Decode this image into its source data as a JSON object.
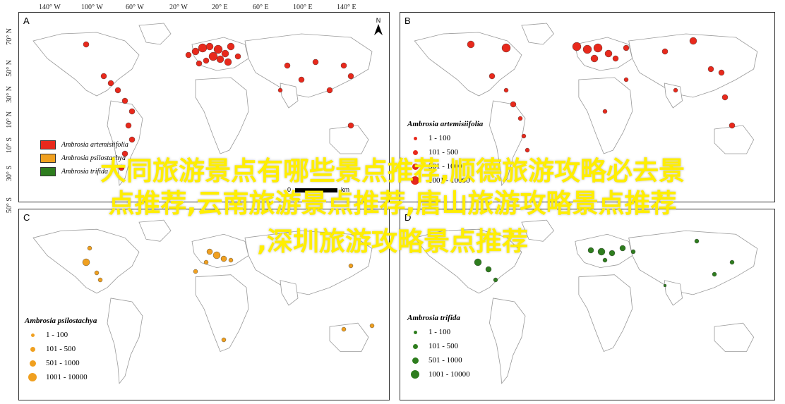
{
  "top_axis": [
    "140° W",
    "100° W",
    "60° W",
    "20° W",
    "20° E",
    "60° E",
    "100° E",
    "140° E",
    "N"
  ],
  "lat_axis": [
    "70° N",
    "50° N",
    "30° N",
    "10° N",
    "10° S",
    "30° S",
    "50° S"
  ],
  "panels": {
    "A": {
      "letter": "A"
    },
    "B": {
      "letter": "B",
      "legend_title": "Ambrosia artemisiifolia",
      "legend": [
        "1 - 100",
        "101 - 500",
        "501 - 1000",
        "1001 - 10000"
      ],
      "color": "#e8291c"
    },
    "C": {
      "letter": "C",
      "legend_title": "Ambrosia psilostachya",
      "legend": [
        "1 - 100",
        "101 - 500",
        "501 - 1000",
        "1001 - 10000"
      ],
      "color": "#f0a020"
    },
    "D": {
      "letter": "D",
      "legend_title": "Ambrosia trifida",
      "legend": [
        "1 - 100",
        "101 - 500",
        "501 - 1000",
        "1001 - 10000"
      ],
      "color": "#2e7d1e"
    }
  },
  "species_legend": [
    "Ambrosia artemisiifolia",
    "Ambrosia psilostachya",
    "Ambrosia trifida"
  ],
  "species_colors": [
    "#e8291c",
    "#f0a020",
    "#2e7d1e"
  ],
  "scale": {
    "zero": "0",
    "unit": "km"
  },
  "overlay_lines": [
    "大同旅游景点有哪些景点推荐,顺德旅游攻略必去景",
    "点推荐,云南旅游景点推荐,唐山旅游攻略景点推荐",
    ",深圳旅游攻略景点推荐"
  ]
}
